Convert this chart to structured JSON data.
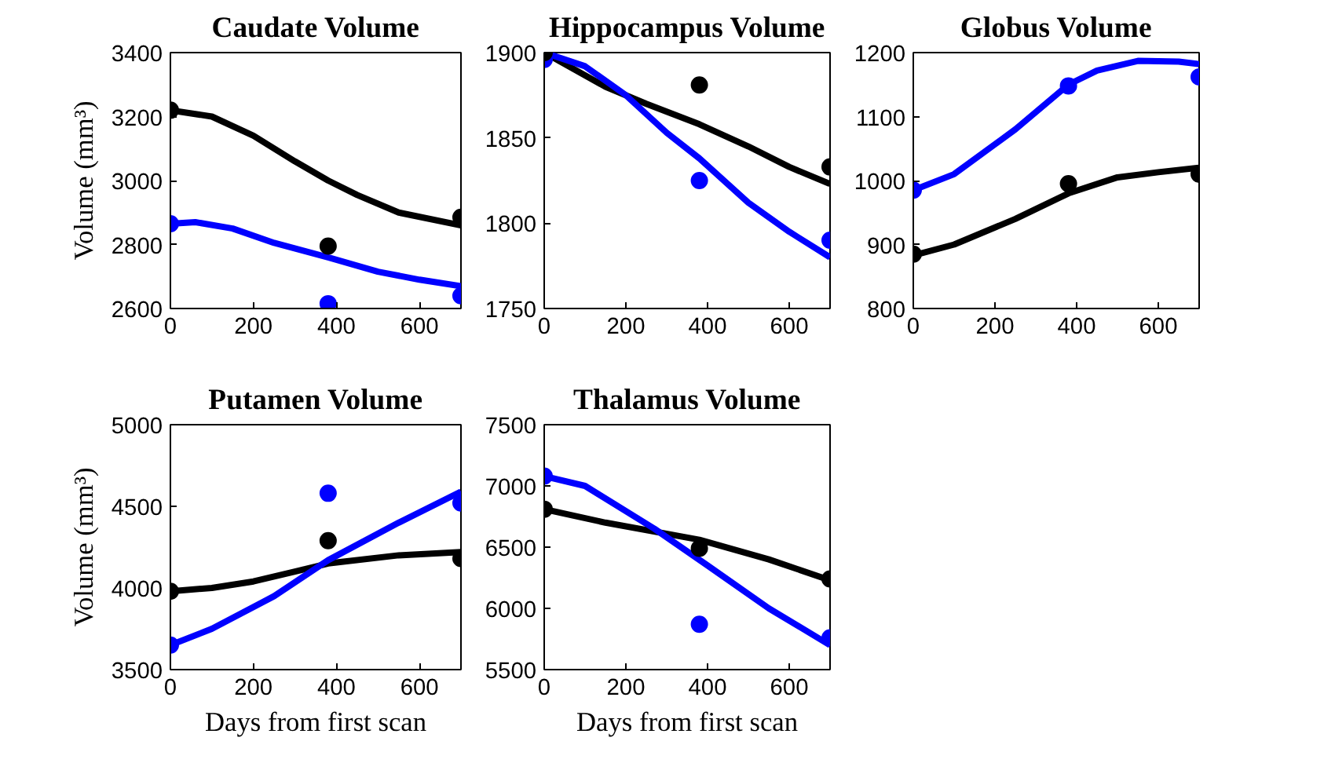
{
  "chart_data": [
    {
      "type": "line",
      "title": "Caudate Volume",
      "ylabel": "Volume (mm³)",
      "xlim": [
        0,
        700
      ],
      "ylim": [
        2600,
        3400
      ],
      "xticks": [
        0,
        200,
        400,
        600
      ],
      "yticks": [
        2600,
        2800,
        3000,
        3200,
        3400
      ],
      "grid": false,
      "marker": "none",
      "line_style": "solid",
      "series": [
        {
          "color": "#000000",
          "x": [
            0,
            100,
            200,
            300,
            380,
            450,
            550,
            700
          ],
          "values": [
            3220,
            3200,
            3140,
            3060,
            3000,
            2955,
            2900,
            2860
          ]
        },
        {
          "color": "#0000ff",
          "x": [
            0,
            60,
            150,
            250,
            380,
            500,
            600,
            700
          ],
          "values": [
            2865,
            2870,
            2850,
            2805,
            2760,
            2715,
            2690,
            2670
          ]
        },
        {
          "type": "scatter",
          "marker": "circle",
          "color": "#000000",
          "x": [
            0,
            380,
            700
          ],
          "values": [
            3220,
            2795,
            2885
          ]
        },
        {
          "type": "scatter",
          "marker": "circle",
          "color": "#0000ff",
          "x": [
            0,
            380,
            700
          ],
          "values": [
            2865,
            2615,
            2640
          ]
        }
      ]
    },
    {
      "type": "line",
      "title": "Hippocampus Volume",
      "xlim": [
        0,
        700
      ],
      "ylim": [
        1750,
        1900
      ],
      "xticks": [
        0,
        200,
        400,
        600
      ],
      "yticks": [
        1750,
        1800,
        1850,
        1900
      ],
      "grid": false,
      "marker": "none",
      "line_style": "solid",
      "series": [
        {
          "color": "#000000",
          "x": [
            0,
            150,
            250,
            380,
            500,
            600,
            700
          ],
          "values": [
            1900,
            1880,
            1870,
            1858,
            1845,
            1833,
            1823
          ]
        },
        {
          "color": "#0000ff",
          "x": [
            0,
            100,
            200,
            300,
            380,
            500,
            600,
            700
          ],
          "values": [
            1900,
            1892,
            1875,
            1853,
            1838,
            1812,
            1795,
            1780
          ]
        },
        {
          "type": "scatter",
          "marker": "circle",
          "color": "#0000ff",
          "x": [
            0,
            380,
            700
          ],
          "values": [
            1896,
            1825,
            1790
          ]
        },
        {
          "type": "scatter",
          "marker": "circle",
          "color": "#000000",
          "x": [
            0,
            380,
            700
          ],
          "values": [
            1900,
            1881,
            1833
          ]
        }
      ]
    },
    {
      "type": "line",
      "title": "Globus Volume",
      "xlim": [
        0,
        700
      ],
      "ylim": [
        800,
        1200
      ],
      "xticks": [
        0,
        200,
        400,
        600
      ],
      "yticks": [
        800,
        900,
        1000,
        1100,
        1200
      ],
      "grid": false,
      "marker": "none",
      "line_style": "solid",
      "series": [
        {
          "color": "#000000",
          "x": [
            0,
            100,
            250,
            380,
            500,
            600,
            700
          ],
          "values": [
            883,
            900,
            940,
            980,
            1005,
            1013,
            1020
          ]
        },
        {
          "color": "#0000ff",
          "x": [
            0,
            100,
            250,
            380,
            450,
            550,
            650,
            700
          ],
          "values": [
            985,
            1010,
            1080,
            1150,
            1172,
            1187,
            1186,
            1182
          ]
        },
        {
          "type": "scatter",
          "marker": "circle",
          "color": "#000000",
          "x": [
            0,
            380,
            700
          ],
          "values": [
            885,
            995,
            1010
          ]
        },
        {
          "type": "scatter",
          "marker": "circle",
          "color": "#0000ff",
          "x": [
            0,
            380,
            700
          ],
          "values": [
            985,
            1148,
            1162
          ]
        }
      ]
    },
    {
      "type": "line",
      "title": "Putamen Volume",
      "xlabel": "Days from first scan",
      "ylabel": "Volume (mm³)",
      "xlim": [
        0,
        700
      ],
      "ylim": [
        3500,
        5000
      ],
      "xticks": [
        0,
        200,
        400,
        600
      ],
      "yticks": [
        3500,
        4000,
        4500,
        5000
      ],
      "grid": false,
      "marker": "none",
      "line_style": "solid",
      "series": [
        {
          "color": "#000000",
          "x": [
            0,
            100,
            200,
            300,
            380,
            550,
            700
          ],
          "values": [
            3980,
            4000,
            4040,
            4100,
            4150,
            4200,
            4220
          ]
        },
        {
          "color": "#0000ff",
          "x": [
            0,
            100,
            250,
            380,
            550,
            700
          ],
          "values": [
            3650,
            3750,
            3950,
            4170,
            4400,
            4590
          ]
        },
        {
          "type": "scatter",
          "marker": "circle",
          "color": "#000000",
          "x": [
            0,
            380,
            700
          ],
          "values": [
            3980,
            4290,
            4180
          ]
        },
        {
          "type": "scatter",
          "marker": "circle",
          "color": "#0000ff",
          "x": [
            0,
            380,
            700
          ],
          "values": [
            3650,
            4580,
            4520
          ]
        }
      ]
    },
    {
      "type": "line",
      "title": "Thalamus Volume",
      "xlabel": "Days from first scan",
      "xlim": [
        0,
        700
      ],
      "ylim": [
        5500,
        7500
      ],
      "xticks": [
        0,
        200,
        400,
        600
      ],
      "yticks": [
        5500,
        6000,
        6500,
        7000,
        7500
      ],
      "grid": false,
      "marker": "none",
      "line_style": "solid",
      "series": [
        {
          "color": "#000000",
          "x": [
            0,
            150,
            380,
            550,
            700
          ],
          "values": [
            6810,
            6700,
            6560,
            6400,
            6230
          ]
        },
        {
          "color": "#0000ff",
          "x": [
            0,
            100,
            270,
            400,
            550,
            700
          ],
          "values": [
            7080,
            7000,
            6650,
            6350,
            6000,
            5700
          ]
        },
        {
          "type": "scatter",
          "marker": "circle",
          "color": "#000000",
          "x": [
            0,
            380,
            700
          ],
          "values": [
            6810,
            6490,
            6240
          ]
        },
        {
          "type": "scatter",
          "marker": "circle",
          "color": "#0000ff",
          "x": [
            0,
            380,
            700
          ],
          "values": [
            7080,
            5870,
            5760
          ]
        }
      ]
    }
  ]
}
